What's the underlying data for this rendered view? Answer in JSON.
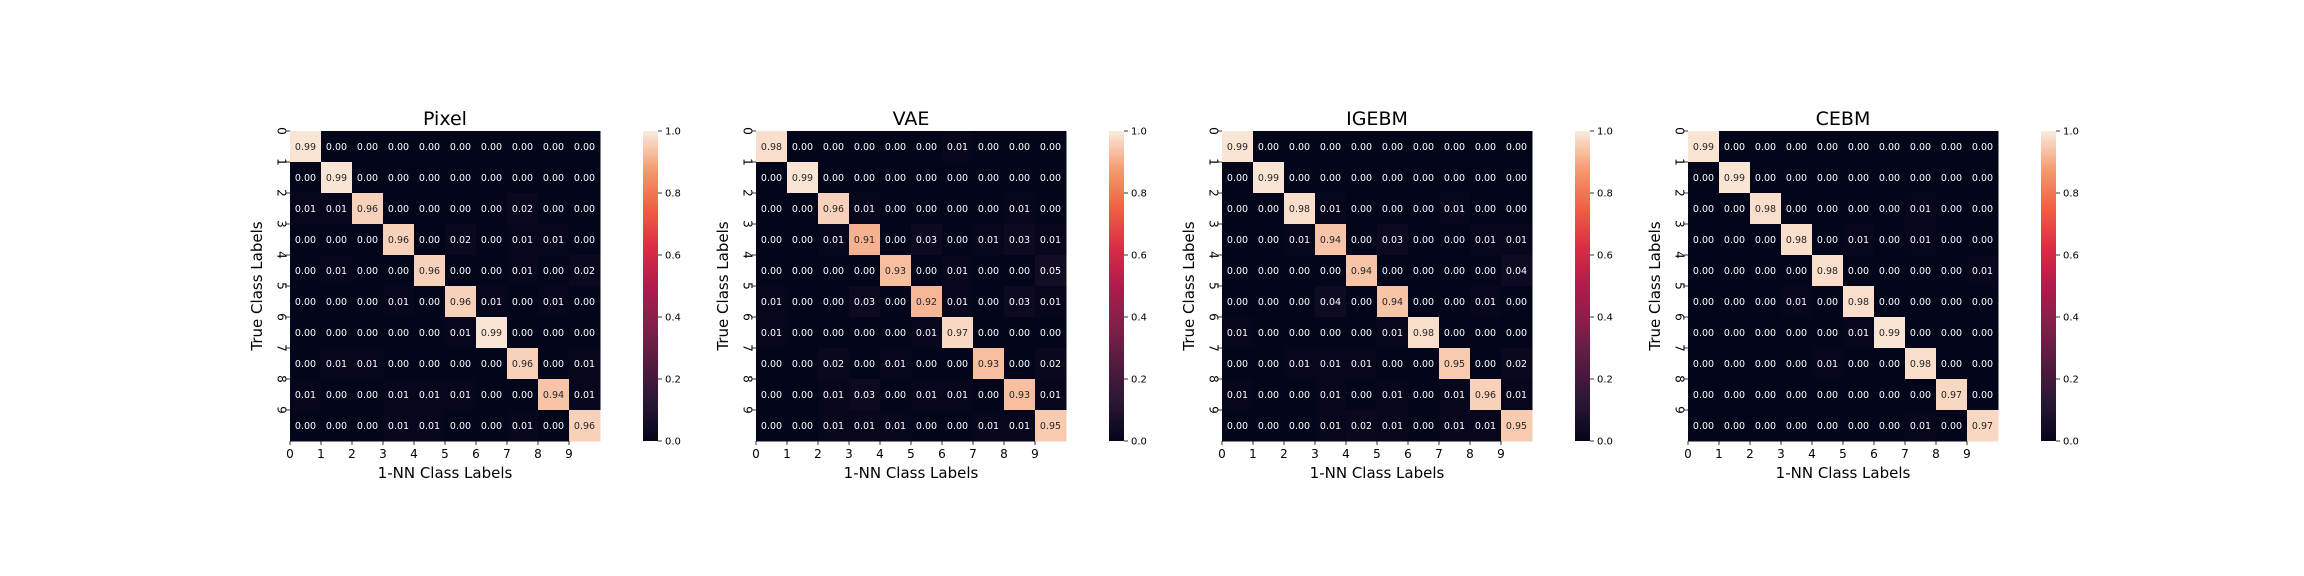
{
  "colorbar": {
    "ticks": [
      "0.0",
      "0.2",
      "0.4",
      "0.6",
      "0.8",
      "1.0"
    ]
  },
  "chart_data": [
    {
      "type": "heatmap",
      "title": "Pixel",
      "xlabel": "1-NN Class Labels",
      "ylabel": "True Class Labels",
      "x_ticks": [
        "0",
        "1",
        "2",
        "3",
        "4",
        "5",
        "6",
        "7",
        "8",
        "9"
      ],
      "y_ticks": [
        "0",
        "1",
        "2",
        "3",
        "4",
        "5",
        "6",
        "7",
        "8",
        "9"
      ],
      "vmin": 0,
      "vmax": 1,
      "values": [
        [
          0.99,
          0.0,
          0.0,
          0.0,
          0.0,
          0.0,
          0.0,
          0.0,
          0.0,
          0.0
        ],
        [
          0.0,
          0.99,
          0.0,
          0.0,
          0.0,
          0.0,
          0.0,
          0.0,
          0.0,
          0.0
        ],
        [
          0.01,
          0.01,
          0.96,
          0.0,
          0.0,
          0.0,
          0.0,
          0.02,
          0.0,
          0.0
        ],
        [
          0.0,
          0.0,
          0.0,
          0.96,
          0.0,
          0.02,
          0.0,
          0.01,
          0.01,
          0.0
        ],
        [
          0.0,
          0.01,
          0.0,
          0.0,
          0.96,
          0.0,
          0.0,
          0.01,
          0.0,
          0.02
        ],
        [
          0.0,
          0.0,
          0.0,
          0.01,
          0.0,
          0.96,
          0.01,
          0.0,
          0.01,
          0.0
        ],
        [
          0.0,
          0.0,
          0.0,
          0.0,
          0.0,
          0.01,
          0.99,
          0.0,
          0.0,
          0.0
        ],
        [
          0.0,
          0.01,
          0.01,
          0.0,
          0.0,
          0.0,
          0.0,
          0.96,
          0.0,
          0.01
        ],
        [
          0.01,
          0.0,
          0.0,
          0.01,
          0.01,
          0.01,
          0.0,
          0.0,
          0.94,
          0.01
        ],
        [
          0.0,
          0.0,
          0.0,
          0.01,
          0.01,
          0.0,
          0.0,
          0.01,
          0.0,
          0.96
        ]
      ]
    },
    {
      "type": "heatmap",
      "title": "VAE",
      "xlabel": "1-NN Class Labels",
      "ylabel": "True Class Labels",
      "x_ticks": [
        "0",
        "1",
        "2",
        "3",
        "4",
        "5",
        "6",
        "7",
        "8",
        "9"
      ],
      "y_ticks": [
        "0",
        "1",
        "2",
        "3",
        "4",
        "5",
        "6",
        "7",
        "8",
        "9"
      ],
      "vmin": 0,
      "vmax": 1,
      "values": [
        [
          0.98,
          0.0,
          0.0,
          0.0,
          0.0,
          0.0,
          0.01,
          0.0,
          0.0,
          0.0
        ],
        [
          0.0,
          0.99,
          0.0,
          0.0,
          0.0,
          0.0,
          0.0,
          0.0,
          0.0,
          0.0
        ],
        [
          0.0,
          0.0,
          0.96,
          0.01,
          0.0,
          0.0,
          0.0,
          0.0,
          0.01,
          0.0
        ],
        [
          0.0,
          0.0,
          0.01,
          0.91,
          0.0,
          0.03,
          0.0,
          0.01,
          0.03,
          0.01
        ],
        [
          0.0,
          0.0,
          0.0,
          0.0,
          0.93,
          0.0,
          0.01,
          0.0,
          0.0,
          0.05
        ],
        [
          0.01,
          0.0,
          0.0,
          0.03,
          0.0,
          0.92,
          0.01,
          0.0,
          0.03,
          0.01
        ],
        [
          0.01,
          0.0,
          0.0,
          0.0,
          0.0,
          0.01,
          0.97,
          0.0,
          0.0,
          0.0
        ],
        [
          0.0,
          0.0,
          0.02,
          0.0,
          0.01,
          0.0,
          0.0,
          0.93,
          0.0,
          0.02
        ],
        [
          0.0,
          0.0,
          0.01,
          0.03,
          0.0,
          0.01,
          0.01,
          0.0,
          0.93,
          0.01
        ],
        [
          0.0,
          0.0,
          0.01,
          0.01,
          0.01,
          0.0,
          0.0,
          0.01,
          0.01,
          0.95
        ]
      ]
    },
    {
      "type": "heatmap",
      "title": "IGEBM",
      "xlabel": "1-NN Class Labels",
      "ylabel": "True Class Labels",
      "x_ticks": [
        "0",
        "1",
        "2",
        "3",
        "4",
        "5",
        "6",
        "7",
        "8",
        "9"
      ],
      "y_ticks": [
        "0",
        "1",
        "2",
        "3",
        "4",
        "5",
        "6",
        "7",
        "8",
        "9"
      ],
      "vmin": 0,
      "vmax": 1,
      "values": [
        [
          0.99,
          0.0,
          0.0,
          0.0,
          0.0,
          0.0,
          0.0,
          0.0,
          0.0,
          0.0
        ],
        [
          0.0,
          0.99,
          0.0,
          0.0,
          0.0,
          0.0,
          0.0,
          0.0,
          0.0,
          0.0
        ],
        [
          0.0,
          0.0,
          0.98,
          0.01,
          0.0,
          0.0,
          0.0,
          0.01,
          0.0,
          0.0
        ],
        [
          0.0,
          0.0,
          0.01,
          0.94,
          0.0,
          0.03,
          0.0,
          0.0,
          0.01,
          0.01
        ],
        [
          0.0,
          0.0,
          0.0,
          0.0,
          0.94,
          0.0,
          0.0,
          0.0,
          0.0,
          0.04
        ],
        [
          0.0,
          0.0,
          0.0,
          0.04,
          0.0,
          0.94,
          0.0,
          0.0,
          0.01,
          0.0
        ],
        [
          0.01,
          0.0,
          0.0,
          0.0,
          0.0,
          0.01,
          0.98,
          0.0,
          0.0,
          0.0
        ],
        [
          0.0,
          0.0,
          0.01,
          0.01,
          0.01,
          0.0,
          0.0,
          0.95,
          0.0,
          0.02
        ],
        [
          0.01,
          0.0,
          0.0,
          0.01,
          0.0,
          0.01,
          0.0,
          0.01,
          0.96,
          0.01
        ],
        [
          0.0,
          0.0,
          0.0,
          0.01,
          0.02,
          0.01,
          0.0,
          0.01,
          0.01,
          0.95
        ]
      ]
    },
    {
      "type": "heatmap",
      "title": "CEBM",
      "xlabel": "1-NN Class Labels",
      "ylabel": "True Class Labels",
      "x_ticks": [
        "0",
        "1",
        "2",
        "3",
        "4",
        "5",
        "6",
        "7",
        "8",
        "9"
      ],
      "y_ticks": [
        "0",
        "1",
        "2",
        "3",
        "4",
        "5",
        "6",
        "7",
        "8",
        "9"
      ],
      "vmin": 0,
      "vmax": 1,
      "values": [
        [
          0.99,
          0.0,
          0.0,
          0.0,
          0.0,
          0.0,
          0.0,
          0.0,
          0.0,
          0.0
        ],
        [
          0.0,
          0.99,
          0.0,
          0.0,
          0.0,
          0.0,
          0.0,
          0.0,
          0.0,
          0.0
        ],
        [
          0.0,
          0.0,
          0.98,
          0.0,
          0.0,
          0.0,
          0.0,
          0.01,
          0.0,
          0.0
        ],
        [
          0.0,
          0.0,
          0.0,
          0.98,
          0.0,
          0.01,
          0.0,
          0.01,
          0.0,
          0.0
        ],
        [
          0.0,
          0.0,
          0.0,
          0.0,
          0.98,
          0.0,
          0.0,
          0.0,
          0.0,
          0.01
        ],
        [
          0.0,
          0.0,
          0.0,
          0.01,
          0.0,
          0.98,
          0.0,
          0.0,
          0.0,
          0.0
        ],
        [
          0.0,
          0.0,
          0.0,
          0.0,
          0.0,
          0.01,
          0.99,
          0.0,
          0.0,
          0.0
        ],
        [
          0.0,
          0.0,
          0.0,
          0.0,
          0.01,
          0.0,
          0.0,
          0.98,
          0.0,
          0.0
        ],
        [
          0.0,
          0.0,
          0.0,
          0.0,
          0.0,
          0.0,
          0.0,
          0.0,
          0.97,
          0.0
        ],
        [
          0.0,
          0.0,
          0.0,
          0.0,
          0.0,
          0.0,
          0.0,
          0.01,
          0.0,
          0.97
        ]
      ]
    }
  ]
}
